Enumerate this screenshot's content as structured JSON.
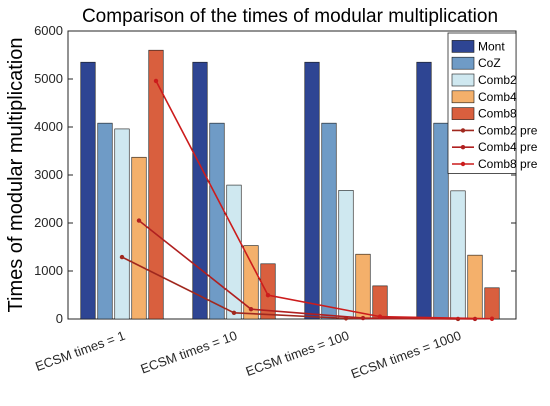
{
  "chart_data": {
    "type": "bar",
    "title": "Comparison of the times of modular multiplication",
    "xlabel": "",
    "ylabel": "Times of modular multiplication",
    "ylim": [
      0,
      6000
    ],
    "yticks": [
      0,
      1000,
      2000,
      3000,
      4000,
      5000,
      6000
    ],
    "grid": false,
    "legend_position": "top-right",
    "categories": [
      "ECSM times = 1",
      "ECSM times = 10",
      "ECSM times = 100",
      "ECSM times = 1000"
    ],
    "series": [
      {
        "name": "Mont",
        "type": "bar",
        "color": "#2e4593",
        "values": [
          5350,
          5350,
          5350,
          5350
        ]
      },
      {
        "name": "CoZ",
        "type": "bar",
        "color": "#6f9bc6",
        "values": [
          4080,
          4080,
          4080,
          4080
        ]
      },
      {
        "name": "Comb2",
        "type": "bar",
        "color": "#cfe8f0",
        "values": [
          3960,
          2790,
          2680,
          2670
        ]
      },
      {
        "name": "Comb4",
        "type": "bar",
        "color": "#f4b06b",
        "values": [
          3370,
          1530,
          1350,
          1330
        ]
      },
      {
        "name": "Comb8",
        "type": "bar",
        "color": "#d95f3e",
        "values": [
          5600,
          1150,
          690,
          650
        ]
      },
      {
        "name": "Comb2 pre",
        "type": "line",
        "color": "#a0281e",
        "values": [
          1290,
          129,
          13,
          1.3
        ]
      },
      {
        "name": "Comb4 pre",
        "type": "line",
        "color": "#b02020",
        "values": [
          2050,
          205,
          20,
          2
        ]
      },
      {
        "name": "Comb8 pre",
        "type": "line",
        "color": "#cc1c1c",
        "values": [
          4960,
          496,
          50,
          5
        ]
      }
    ]
  }
}
